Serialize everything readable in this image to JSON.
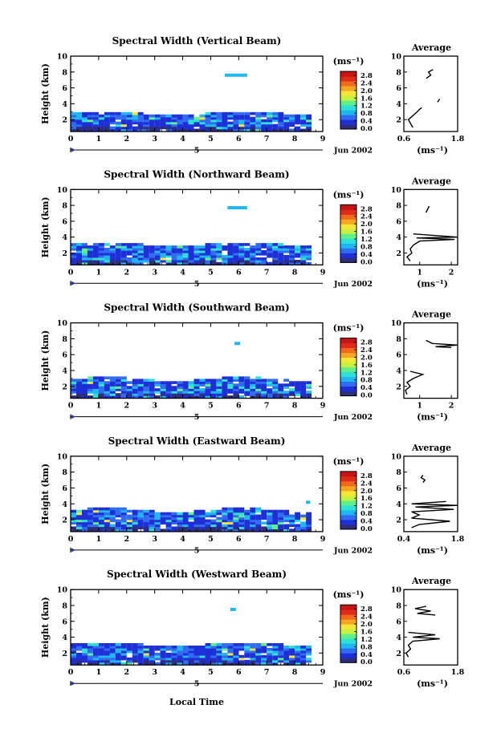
{
  "figure": {
    "common_xlabel": "Local Time",
    "date_label": "Jun 2002",
    "day_marker": "5",
    "units_label": "(ms⁻¹)",
    "avg_title": "Average",
    "avg_xlabel": "(ms⁻¹)",
    "colorbar_ticks": [
      "0.0",
      "0.4",
      "0.8",
      "1.2",
      "1.6",
      "2.0",
      "2.4",
      "2.8"
    ],
    "colormap": [
      "#2e2e7a",
      "#1f2fd8",
      "#2f6cf2",
      "#1fb7f0",
      "#2fe0d6",
      "#5ff08c",
      "#c8f040",
      "#f5e63a",
      "#f5a623",
      "#f06a1e",
      "#e02a1a",
      "#c81414"
    ]
  },
  "chart_data": [
    {
      "type": "heatmap",
      "title": "Spectral Width (Vertical Beam)",
      "ylabel": "Height (km)",
      "xlim": [
        0,
        9
      ],
      "ylim": [
        0.5,
        10
      ],
      "xticks": [
        "0",
        "1",
        "2",
        "3",
        "4",
        "5",
        "6",
        "7",
        "8",
        "9"
      ],
      "yticks": [
        "2",
        "4",
        "6",
        "8",
        "10"
      ],
      "layer_top_km": 3.0,
      "layer_end_h": 8.5,
      "feature": {
        "x": [
          5.5,
          6.3
        ],
        "y": 7.6
      },
      "average": {
        "title": "Average",
        "xlim": [
          0.6,
          1.8
        ],
        "xticks": [
          "0.6",
          "1.8"
        ],
        "profile": [
          [
            0.8,
            1.0
          ],
          [
            0.75,
            1.5
          ],
          [
            0.7,
            2.0
          ],
          [
            0.8,
            2.5
          ],
          [
            0.9,
            3.0
          ],
          [
            0.95,
            3.3
          ],
          [
            1.0,
            3.5
          ]
        ],
        "segments": [
          [
            [
              1.1,
              7.2
            ],
            [
              1.2,
              7.6
            ],
            [
              1.15,
              8.0
            ],
            [
              1.25,
              8.3
            ]
          ],
          [
            [
              1.35,
              4.2
            ],
            [
              1.4,
              4.6
            ]
          ]
        ]
      }
    },
    {
      "type": "heatmap",
      "title": "Spectral Width (Northward Beam)",
      "ylabel": "Height (km)",
      "xlim": [
        0,
        9
      ],
      "ylim": [
        0.5,
        10
      ],
      "xticks": [
        "0",
        "1",
        "2",
        "3",
        "4",
        "5",
        "6",
        "7",
        "8",
        "9"
      ],
      "yticks": [
        "2",
        "4",
        "6",
        "8",
        "10"
      ],
      "layer_top_km": 3.3,
      "layer_end_h": 8.5,
      "feature": {
        "x": [
          5.6,
          6.3
        ],
        "y": 7.7
      },
      "average": {
        "title": "Average",
        "xlim": [
          0.5,
          2.2
        ],
        "xticks": [
          "1",
          "2"
        ],
        "profile": [
          [
            0.7,
            1.0
          ],
          [
            0.6,
            1.5
          ],
          [
            0.75,
            2.0
          ],
          [
            0.7,
            2.5
          ],
          [
            0.8,
            3.0
          ],
          [
            1.0,
            3.5
          ],
          [
            2.1,
            3.7
          ],
          [
            0.9,
            3.9
          ],
          [
            2.2,
            4.0
          ],
          [
            0.8,
            4.4
          ]
        ],
        "segments": [
          [
            [
              1.2,
              7.1
            ],
            [
              1.25,
              7.5
            ],
            [
              1.3,
              7.9
            ]
          ]
        ]
      }
    },
    {
      "type": "heatmap",
      "title": "Spectral Width (Southward Beam)",
      "ylabel": "Height (km)",
      "xlim": [
        0,
        9
      ],
      "ylim": [
        0.5,
        10
      ],
      "xticks": [
        "0",
        "1",
        "2",
        "3",
        "4",
        "5",
        "6",
        "7",
        "8",
        "9"
      ],
      "yticks": [
        "2",
        "4",
        "6",
        "8",
        "10"
      ],
      "layer_top_km": 3.1,
      "layer_end_h": 8.5,
      "feature": {
        "x": [
          5.85,
          6.05
        ],
        "y": 7.4
      },
      "average": {
        "title": "Average",
        "xlim": [
          0.5,
          2.2
        ],
        "xticks": [
          "1",
          "2"
        ],
        "profile": [
          [
            0.6,
            1.0
          ],
          [
            0.55,
            1.5
          ],
          [
            0.7,
            2.0
          ],
          [
            0.6,
            2.5
          ],
          [
            0.8,
            3.0
          ],
          [
            1.1,
            3.5
          ],
          [
            0.7,
            3.9
          ]
        ],
        "segments": [
          [
            [
              1.2,
              7.8
            ],
            [
              1.4,
              7.4
            ],
            [
              2.2,
              7.2
            ],
            [
              1.5,
              7.0
            ],
            [
              2.0,
              6.9
            ]
          ]
        ]
      }
    },
    {
      "type": "heatmap",
      "title": "Spectral Width (Eastward Beam)",
      "ylabel": "Height (km)",
      "xlim": [
        0,
        9
      ],
      "ylim": [
        0.5,
        10
      ],
      "xticks": [
        "0",
        "1",
        "2",
        "3",
        "4",
        "5",
        "6",
        "7",
        "8",
        "9"
      ],
      "yticks": [
        "2",
        "4",
        "6",
        "8",
        "10"
      ],
      "layer_top_km": 3.4,
      "layer_end_h": 8.5,
      "feature": {
        "x": [
          8.4,
          8.55
        ],
        "y": 4.2
      },
      "average": {
        "title": "Average",
        "xlim": [
          0.4,
          1.8
        ],
        "xticks": [
          "0.4",
          "1.8"
        ],
        "profile": [
          [
            0.6,
            1.0
          ],
          [
            0.8,
            1.4
          ],
          [
            1.6,
            1.8
          ],
          [
            0.6,
            2.2
          ],
          [
            0.8,
            2.6
          ],
          [
            0.6,
            3.0
          ],
          [
            1.7,
            3.3
          ],
          [
            0.7,
            3.6
          ],
          [
            1.8,
            3.8
          ],
          [
            0.6,
            4.0
          ],
          [
            1.5,
            4.3
          ]
        ],
        "segments": [
          [
            [
              0.9,
              6.7
            ],
            [
              0.95,
              7.0
            ],
            [
              0.85,
              7.3
            ],
            [
              0.9,
              7.6
            ]
          ]
        ]
      }
    },
    {
      "type": "heatmap",
      "title": "Spectral Width (Westward Beam)",
      "ylabel": "Height (km)",
      "xlim": [
        0,
        9
      ],
      "ylim": [
        0.5,
        10
      ],
      "xticks": [
        "0",
        "1",
        "2",
        "3",
        "4",
        "5",
        "6",
        "7",
        "8",
        "9"
      ],
      "yticks": [
        "2",
        "4",
        "6",
        "8",
        "10"
      ],
      "layer_top_km": 3.3,
      "layer_end_h": 8.5,
      "feature": {
        "x": [
          5.7,
          5.9
        ],
        "y": 7.5
      },
      "average": {
        "title": "Average",
        "xlim": [
          0.6,
          1.8
        ],
        "xticks": [
          "0.6",
          "1.8"
        ],
        "profile": [
          [
            0.7,
            1.5
          ],
          [
            0.65,
            2.0
          ],
          [
            0.75,
            2.5
          ],
          [
            0.7,
            3.0
          ],
          [
            0.8,
            3.5
          ],
          [
            1.4,
            3.8
          ],
          [
            0.8,
            4.0
          ],
          [
            1.3,
            4.3
          ],
          [
            0.7,
            4.6
          ]
        ],
        "segments": [
          [
            [
              1.3,
              6.8
            ],
            [
              0.9,
              7.0
            ],
            [
              1.2,
              7.3
            ],
            [
              0.85,
              7.6
            ],
            [
              1.1,
              7.9
            ]
          ]
        ]
      }
    }
  ]
}
